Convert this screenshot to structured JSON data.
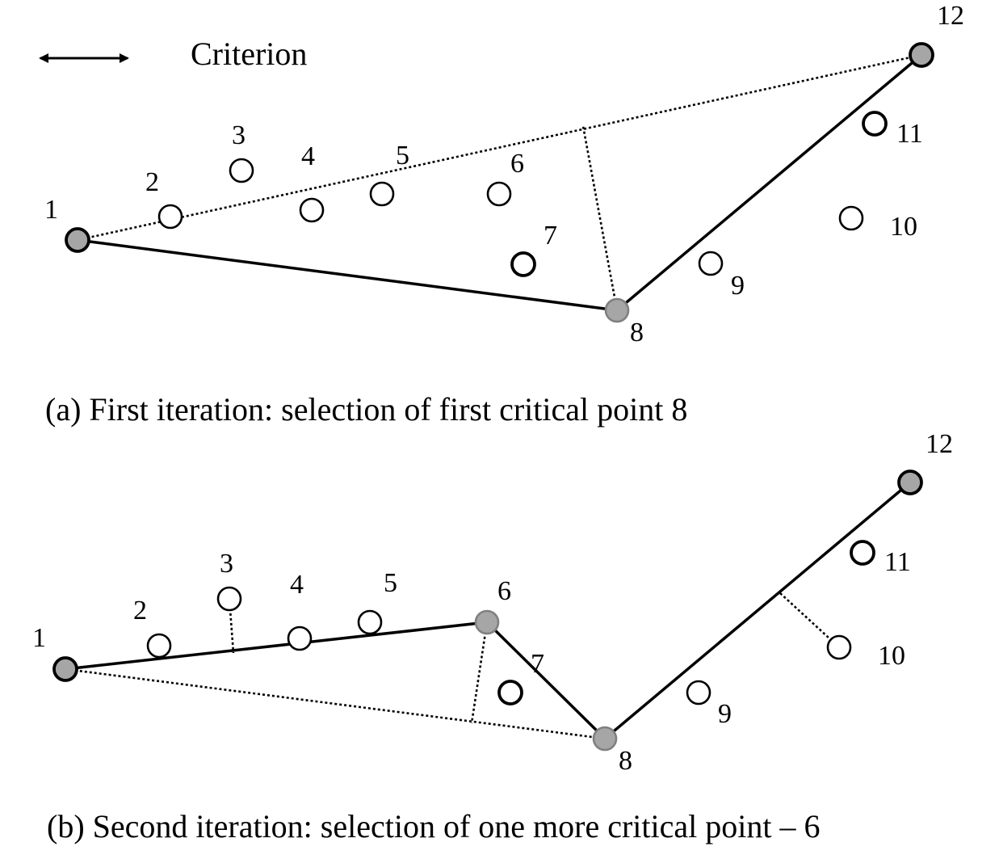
{
  "legend": {
    "criterion_label": "Criterion"
  },
  "panel_a": {
    "caption": "(a) First iteration:  selection of first critical point 8",
    "point_labels": [
      "1",
      "2",
      "3",
      "4",
      "5",
      "6",
      "7",
      "8",
      "9",
      "10",
      "11",
      "12"
    ]
  },
  "panel_b": {
    "caption": "(b) Second iteration:  selection of one more critical point – 6",
    "point_labels": [
      "1",
      "2",
      "3",
      "4",
      "5",
      "6",
      "7",
      "8",
      "9",
      "10",
      "11",
      "12"
    ]
  }
}
